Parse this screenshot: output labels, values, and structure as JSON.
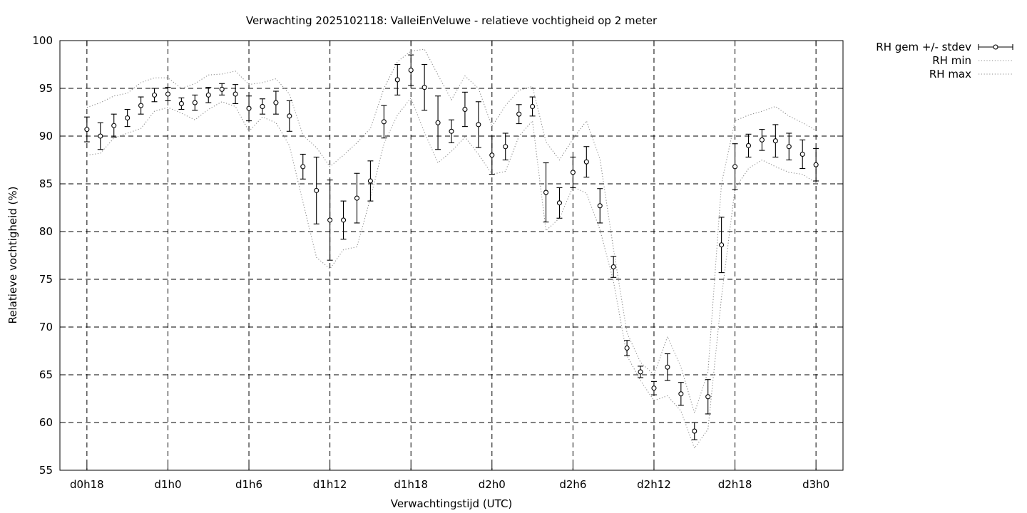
{
  "chart_data": {
    "type": "line",
    "title": "Verwachting 2025102118: ValleiEnVeluwe - relatieve vochtigheid op 2 meter",
    "xlabel": "Verwachtingstijd (UTC)",
    "ylabel": "Relatieve vochtigheid (%)",
    "ylim": [
      55,
      100
    ],
    "yticks": [
      55,
      60,
      65,
      70,
      75,
      80,
      85,
      90,
      95,
      100
    ],
    "xlim": [
      -2,
      56
    ],
    "xticks": [
      {
        "x": 0,
        "label": "d0h18"
      },
      {
        "x": 6,
        "label": "d1h0"
      },
      {
        "x": 12,
        "label": "d1h6"
      },
      {
        "x": 18,
        "label": "d1h12"
      },
      {
        "x": 24,
        "label": "d1h18"
      },
      {
        "x": 30,
        "label": "d2h0"
      },
      {
        "x": 36,
        "label": "d2h6"
      },
      {
        "x": 42,
        "label": "d2h12"
      },
      {
        "x": 48,
        "label": "d2h18"
      },
      {
        "x": 54,
        "label": "d3h0"
      }
    ],
    "grid": true,
    "legend_position": "outside-top-right",
    "x": [
      0,
      1,
      2,
      3,
      4,
      5,
      6,
      7,
      8,
      9,
      10,
      11,
      12,
      13,
      14,
      15,
      16,
      17,
      18,
      19,
      20,
      21,
      22,
      23,
      24,
      25,
      26,
      27,
      28,
      29,
      30,
      31,
      32,
      33,
      34,
      35,
      36,
      37,
      38,
      39,
      40,
      41,
      42,
      43,
      44,
      45,
      46,
      47,
      48,
      49,
      50,
      51,
      52,
      53,
      54
    ],
    "series": [
      {
        "name": "RH gem +/- stdev",
        "style": "errorbars",
        "values": [
          90.7,
          90.0,
          91.1,
          91.9,
          93.2,
          94.3,
          94.4,
          93.4,
          93.5,
          94.3,
          94.9,
          94.4,
          92.9,
          93.1,
          93.5,
          92.1,
          86.8,
          84.3,
          81.2,
          81.2,
          83.5,
          85.3,
          91.5,
          95.9,
          96.9,
          95.1,
          91.4,
          90.5,
          92.8,
          91.2,
          88.0,
          88.9,
          92.3,
          93.1,
          84.1,
          83.0,
          86.2,
          87.3,
          82.7,
          76.3,
          67.8,
          65.3,
          63.6,
          65.8,
          63.0,
          59.1,
          62.7,
          78.6,
          86.8,
          89.0,
          89.6,
          89.5,
          88.9,
          88.1,
          87.0
        ],
        "errors": [
          1.3,
          1.4,
          1.2,
          0.9,
          0.9,
          0.7,
          0.7,
          0.6,
          0.8,
          0.8,
          0.6,
          1.0,
          1.3,
          0.8,
          1.2,
          1.6,
          1.3,
          3.5,
          4.2,
          2.0,
          2.6,
          2.1,
          1.7,
          1.6,
          1.6,
          2.4,
          2.8,
          1.2,
          1.8,
          2.4,
          2.0,
          1.4,
          1.0,
          1.0,
          3.1,
          1.6,
          1.6,
          1.6,
          1.8,
          1.1,
          0.8,
          0.6,
          0.7,
          1.4,
          1.2,
          0.9,
          1.8,
          2.9,
          2.4,
          1.2,
          1.1,
          1.7,
          1.4,
          1.5,
          1.7
        ]
      },
      {
        "name": "RH min",
        "style": "dotted",
        "values": [
          88.0,
          88.2,
          89.8,
          90.3,
          90.8,
          92.6,
          93.0,
          92.4,
          91.7,
          92.8,
          93.6,
          93.1,
          90.5,
          92.0,
          91.4,
          89.0,
          83.1,
          77.3,
          76.1,
          78.1,
          78.4,
          83.5,
          89.2,
          92.2,
          94.0,
          90.4,
          87.2,
          88.4,
          89.9,
          88.1,
          86.0,
          86.3,
          90.0,
          91.6,
          80.1,
          81.4,
          84.7,
          84.0,
          80.2,
          74.8,
          67.0,
          64.4,
          62.3,
          62.8,
          61.2,
          57.3,
          59.3,
          73.1,
          84.5,
          86.6,
          87.5,
          86.8,
          86.2,
          86.0,
          85.1
        ]
      },
      {
        "name": "RH max",
        "style": "dotted",
        "values": [
          93.0,
          93.5,
          94.2,
          94.5,
          95.6,
          96.1,
          96.1,
          95.0,
          95.5,
          96.4,
          96.5,
          96.8,
          95.4,
          95.6,
          96.0,
          94.4,
          90.1,
          88.8,
          86.8,
          88.0,
          89.3,
          90.8,
          95.0,
          97.8,
          98.9,
          99.1,
          96.4,
          93.8,
          96.3,
          95.0,
          91.0,
          93.2,
          94.8,
          95.2,
          89.4,
          87.5,
          89.7,
          91.6,
          87.6,
          78.2,
          69.4,
          66.3,
          65.0,
          69.0,
          65.8,
          61.0,
          65.3,
          85.0,
          91.6,
          92.2,
          92.6,
          93.1,
          92.1,
          91.4,
          90.6
        ]
      }
    ]
  }
}
